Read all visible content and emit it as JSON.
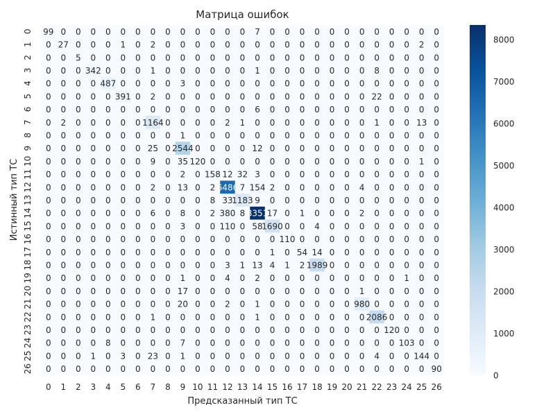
{
  "chart_data": {
    "type": "heatmap",
    "title": "Матрица ошибок",
    "xlabel": "Предсказанный тип ТС",
    "ylabel": "Истинный тип ТС",
    "x_categories": [
      "0",
      "1",
      "2",
      "3",
      "4",
      "5",
      "6",
      "7",
      "8",
      "9",
      "10",
      "11",
      "12",
      "13",
      "14",
      "15",
      "16",
      "17",
      "18",
      "19",
      "20",
      "21",
      "22",
      "23",
      "24",
      "25",
      "26"
    ],
    "y_categories": [
      "0",
      "1",
      "2",
      "3",
      "4",
      "5",
      "6",
      "7",
      "8",
      "9",
      "10",
      "11",
      "12",
      "13",
      "14",
      "15",
      "16",
      "17",
      "18",
      "19",
      "20",
      "21",
      "22",
      "23",
      "24",
      "25",
      "26"
    ],
    "values": [
      [
        99,
        0,
        0,
        0,
        0,
        0,
        0,
        0,
        0,
        0,
        0,
        0,
        0,
        0,
        7,
        0,
        0,
        0,
        0,
        0,
        0,
        0,
        0,
        0,
        0,
        0,
        0
      ],
      [
        0,
        27,
        0,
        0,
        0,
        1,
        0,
        2,
        0,
        0,
        0,
        0,
        0,
        0,
        0,
        0,
        0,
        0,
        0,
        0,
        0,
        0,
        0,
        0,
        0,
        2,
        0
      ],
      [
        0,
        0,
        5,
        0,
        0,
        0,
        0,
        0,
        0,
        0,
        0,
        0,
        0,
        0,
        0,
        0,
        0,
        0,
        0,
        0,
        0,
        0,
        0,
        0,
        0,
        0,
        0
      ],
      [
        0,
        0,
        0,
        342,
        0,
        0,
        0,
        1,
        0,
        0,
        0,
        0,
        0,
        0,
        1,
        0,
        0,
        0,
        0,
        0,
        0,
        0,
        8,
        0,
        0,
        0,
        0
      ],
      [
        0,
        0,
        0,
        0,
        487,
        0,
        0,
        0,
        0,
        3,
        0,
        0,
        0,
        0,
        0,
        0,
        0,
        0,
        0,
        0,
        0,
        0,
        0,
        0,
        0,
        0,
        0
      ],
      [
        0,
        0,
        0,
        0,
        0,
        391,
        0,
        2,
        0,
        0,
        0,
        0,
        0,
        0,
        0,
        0,
        0,
        0,
        0,
        0,
        0,
        0,
        22,
        0,
        0,
        0,
        0
      ],
      [
        0,
        0,
        0,
        0,
        0,
        0,
        0,
        0,
        0,
        0,
        0,
        0,
        0,
        0,
        6,
        0,
        0,
        0,
        0,
        0,
        0,
        0,
        0,
        0,
        0,
        0,
        0
      ],
      [
        0,
        2,
        0,
        0,
        0,
        0,
        0,
        1164,
        0,
        0,
        0,
        0,
        2,
        1,
        0,
        0,
        0,
        0,
        0,
        0,
        0,
        0,
        1,
        0,
        0,
        13,
        0
      ],
      [
        0,
        0,
        0,
        0,
        0,
        0,
        0,
        0,
        0,
        1,
        0,
        0,
        0,
        0,
        0,
        0,
        0,
        0,
        0,
        0,
        0,
        0,
        0,
        0,
        0,
        0,
        0
      ],
      [
        0,
        0,
        0,
        0,
        0,
        0,
        0,
        25,
        0,
        2544,
        0,
        0,
        0,
        0,
        12,
        0,
        0,
        0,
        0,
        0,
        0,
        0,
        0,
        0,
        0,
        0,
        0
      ],
      [
        0,
        0,
        0,
        0,
        0,
        0,
        0,
        9,
        0,
        35,
        120,
        0,
        0,
        0,
        0,
        0,
        0,
        0,
        0,
        0,
        0,
        0,
        0,
        0,
        0,
        1,
        0
      ],
      [
        0,
        0,
        0,
        0,
        0,
        0,
        0,
        0,
        0,
        2,
        0,
        158,
        12,
        32,
        3,
        0,
        0,
        0,
        0,
        0,
        0,
        0,
        0,
        0,
        0,
        0,
        0
      ],
      [
        0,
        0,
        0,
        0,
        0,
        0,
        0,
        2,
        0,
        13,
        0,
        2,
        6486,
        7,
        154,
        2,
        0,
        0,
        0,
        0,
        0,
        4,
        0,
        0,
        0,
        0,
        0
      ],
      [
        0,
        0,
        0,
        0,
        0,
        0,
        0,
        0,
        0,
        0,
        0,
        8,
        33,
        1183,
        9,
        0,
        0,
        0,
        0,
        0,
        0,
        0,
        0,
        0,
        0,
        0,
        0
      ],
      [
        0,
        0,
        0,
        0,
        0,
        0,
        0,
        6,
        0,
        8,
        0,
        2,
        380,
        8,
        8351,
        17,
        0,
        1,
        0,
        0,
        0,
        2,
        0,
        0,
        0,
        0,
        0
      ],
      [
        0,
        0,
        0,
        0,
        0,
        0,
        0,
        0,
        0,
        3,
        0,
        0,
        110,
        0,
        58,
        1690,
        0,
        0,
        4,
        0,
        0,
        0,
        0,
        0,
        0,
        0,
        0
      ],
      [
        0,
        0,
        0,
        0,
        0,
        0,
        0,
        0,
        0,
        0,
        0,
        0,
        0,
        0,
        0,
        0,
        110,
        0,
        0,
        0,
        0,
        0,
        0,
        0,
        0,
        0,
        0
      ],
      [
        0,
        0,
        0,
        0,
        0,
        0,
        0,
        0,
        0,
        0,
        0,
        0,
        0,
        0,
        0,
        1,
        0,
        54,
        14,
        0,
        0,
        0,
        0,
        0,
        0,
        0,
        0
      ],
      [
        0,
        0,
        0,
        0,
        0,
        0,
        0,
        0,
        0,
        0,
        0,
        0,
        3,
        1,
        13,
        4,
        1,
        2,
        1989,
        0,
        0,
        0,
        0,
        0,
        0,
        0,
        0
      ],
      [
        0,
        0,
        0,
        0,
        0,
        0,
        0,
        0,
        0,
        1,
        0,
        0,
        4,
        0,
        2,
        0,
        0,
        0,
        0,
        0,
        0,
        0,
        0,
        0,
        1,
        0,
        0
      ],
      [
        0,
        0,
        0,
        0,
        0,
        0,
        0,
        0,
        0,
        17,
        0,
        0,
        0,
        0,
        0,
        0,
        0,
        0,
        0,
        0,
        0,
        1,
        0,
        0,
        0,
        0,
        0
      ],
      [
        0,
        0,
        0,
        0,
        0,
        0,
        0,
        0,
        0,
        20,
        0,
        0,
        2,
        0,
        1,
        0,
        0,
        0,
        0,
        0,
        0,
        980,
        0,
        0,
        0,
        0,
        0
      ],
      [
        0,
        0,
        0,
        0,
        0,
        0,
        0,
        1,
        0,
        0,
        0,
        0,
        0,
        0,
        1,
        0,
        0,
        0,
        0,
        0,
        0,
        0,
        2086,
        0,
        0,
        0,
        0
      ],
      [
        0,
        0,
        0,
        0,
        0,
        0,
        0,
        0,
        0,
        0,
        0,
        0,
        0,
        0,
        0,
        0,
        0,
        0,
        0,
        0,
        0,
        0,
        0,
        120,
        0,
        0,
        0
      ],
      [
        0,
        0,
        0,
        0,
        8,
        0,
        0,
        0,
        0,
        7,
        0,
        0,
        0,
        0,
        0,
        0,
        0,
        0,
        0,
        0,
        0,
        0,
        0,
        0,
        103,
        0,
        0
      ],
      [
        0,
        0,
        0,
        1,
        0,
        3,
        0,
        23,
        0,
        1,
        0,
        0,
        0,
        0,
        0,
        0,
        0,
        0,
        0,
        0,
        0,
        0,
        4,
        0,
        0,
        144,
        0
      ],
      [
        0,
        0,
        0,
        0,
        0,
        0,
        0,
        0,
        0,
        0,
        0,
        0,
        0,
        0,
        0,
        0,
        0,
        0,
        0,
        0,
        0,
        0,
        0,
        0,
        0,
        0,
        90
      ]
    ],
    "vmin": 0,
    "vmax": 8351,
    "colormap": "Blues",
    "colors": {
      "low": "#f7fbff",
      "high": "#08306b",
      "text_dark": "#262626",
      "text_light": "#ffffff"
    },
    "colorbar_ticks": [
      0,
      1000,
      2000,
      3000,
      4000,
      5000,
      6000,
      7000,
      8000
    ],
    "grid": false,
    "colorbar": "right"
  }
}
